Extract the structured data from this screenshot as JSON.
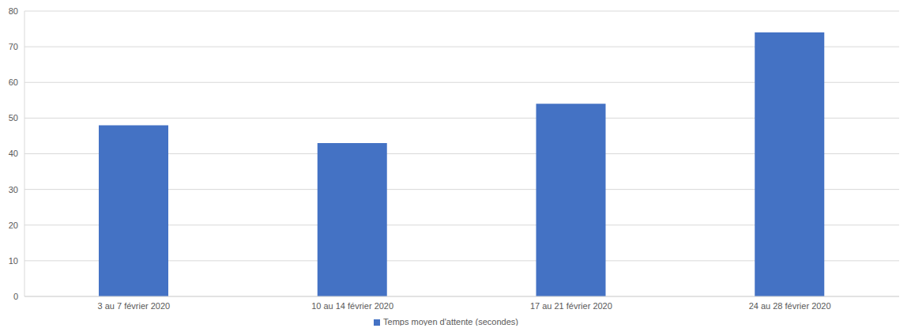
{
  "chart_data": {
    "type": "bar",
    "categories": [
      "3 au 7 février 2020",
      "10 au 14 février 2020",
      "17 au 21 février 2020",
      "24 au 28 février 2020"
    ],
    "series": [
      {
        "name": "Temps moyen d'attente (secondes)",
        "color": "#4472c4",
        "values": [
          48,
          43,
          54,
          74
        ]
      }
    ],
    "ylim": [
      0,
      80
    ],
    "yticks": [
      0,
      10,
      20,
      30,
      40,
      50,
      60,
      70,
      80
    ],
    "grid": true,
    "legend": "bottom"
  }
}
